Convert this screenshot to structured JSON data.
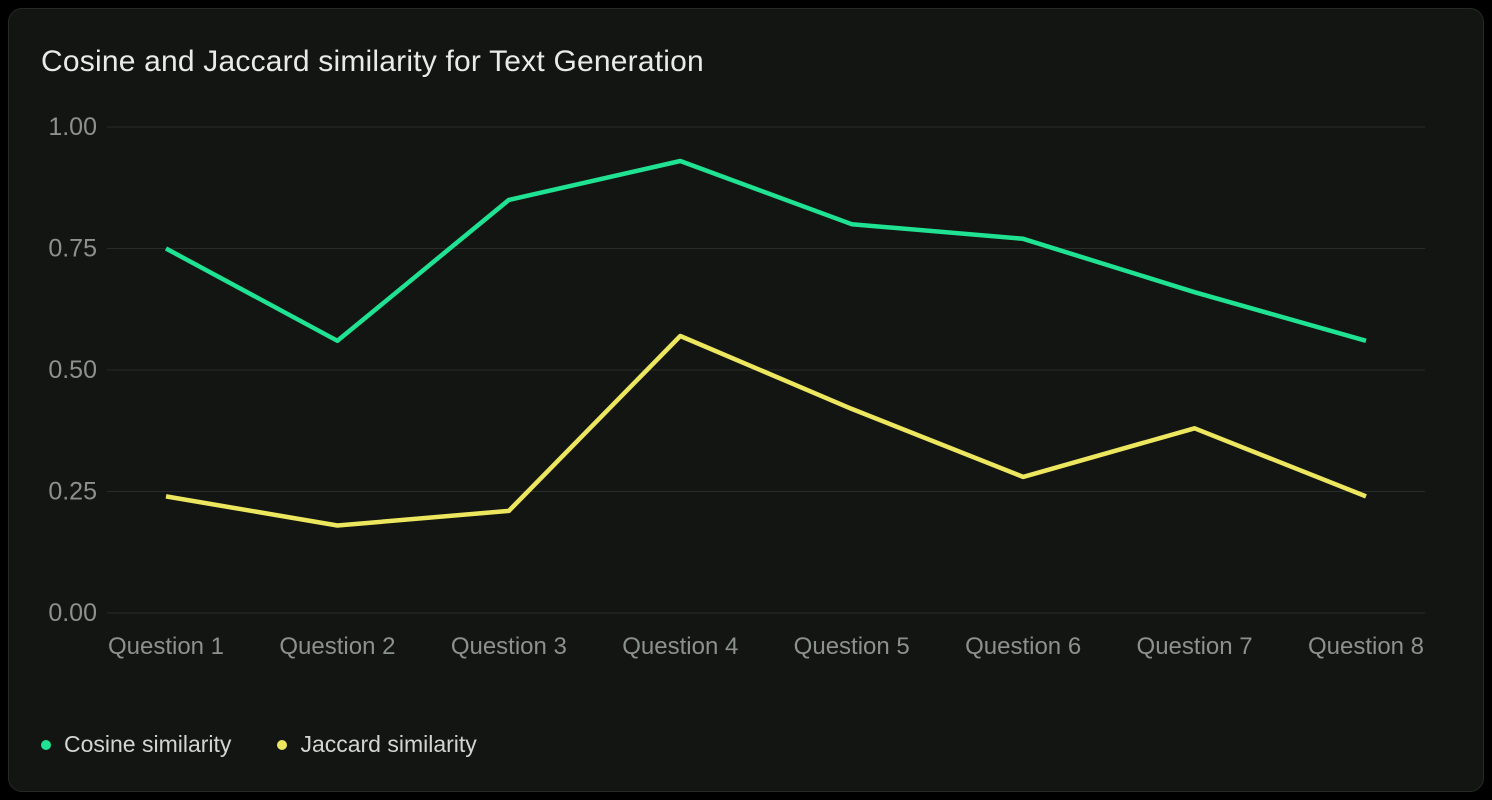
{
  "card": {
    "title": "Cosine and Jaccard similarity for Text Generation"
  },
  "chart_data": {
    "type": "line",
    "title": "Cosine and Jaccard similarity for Text Generation",
    "xlabel": "",
    "ylabel": "",
    "categories": [
      "Question 1",
      "Question 2",
      "Question 3",
      "Question 4",
      "Question 5",
      "Question 6",
      "Question 7",
      "Question 8"
    ],
    "series": [
      {
        "name": "Cosine similarity",
        "color": "#1fe392",
        "values": [
          0.75,
          0.56,
          0.85,
          0.93,
          0.8,
          0.77,
          0.66,
          0.56
        ]
      },
      {
        "name": "Jaccard similarity",
        "color": "#ece75e",
        "values": [
          0.24,
          0.18,
          0.21,
          0.57,
          0.42,
          0.28,
          0.38,
          0.24
        ]
      }
    ],
    "ylim": [
      0,
      1
    ],
    "y_ticks": [
      {
        "label": "1.00",
        "value": 1
      },
      {
        "label": "0.75",
        "value": 0.75
      },
      {
        "label": "0.50",
        "value": 0.5
      },
      {
        "label": "0.25",
        "value": 0.25
      },
      {
        "label": "0.00",
        "value": 0
      }
    ],
    "grid": "horizontal",
    "grid_color": "#2a2c2a",
    "tick_color": "#8b918d",
    "legend_position": "bottom-left"
  }
}
